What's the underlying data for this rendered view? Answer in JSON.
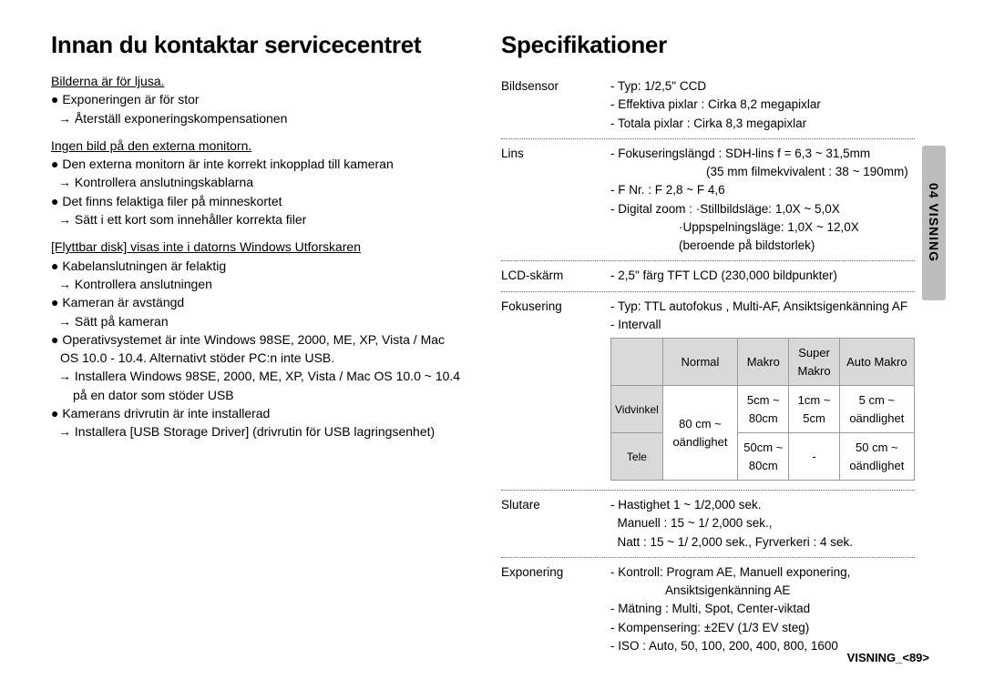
{
  "left": {
    "heading": "Innan du kontaktar servicecentret",
    "groups": [
      {
        "issue": "Bilderna är för ljusa.",
        "items": [
          {
            "bullet": "● Exponeringen är för stor",
            "arrow": "→ Återställ exponeringskompensationen"
          }
        ]
      },
      {
        "issue": "Ingen bild på den externa monitorn.",
        "items": [
          {
            "bullet": "● Den externa monitorn är inte korrekt inkopplad till kameran",
            "arrow": "→ Kontrollera anslutningskablarna"
          },
          {
            "bullet": "● Det finns felaktiga filer på minneskortet",
            "arrow": "→ Sätt i ett kort som innehåller korrekta filer"
          }
        ]
      },
      {
        "issue": "[Flyttbar disk] visas inte i datorns Windows Utforskaren",
        "items": [
          {
            "bullet": "● Kabelanslutningen är felaktig",
            "arrow": "→ Kontrollera anslutningen"
          },
          {
            "bullet": "● Kameran är avstängd",
            "arrow": "→ Sätt på kameran"
          },
          {
            "bullet": "● Operativsystemet är inte Windows 98SE, 2000, ME, XP, Vista / Mac OS 10.0 - 10.4. Alternativt stöder PC:n inte USB.",
            "arrow": "→ Installera Windows 98SE, 2000, ME, XP, Vista / Mac OS 10.0 ~ 10.4 på en dator som stöder USB"
          },
          {
            "bullet": "● Kamerans drivrutin är inte installerad",
            "arrow": "→ Installera [USB Storage Driver] (drivrutin för USB lagringsenhet)"
          }
        ]
      }
    ]
  },
  "right": {
    "heading": "Specifikationer",
    "specs": [
      {
        "label": "Bildsensor",
        "lines": [
          "- Typ: 1/2,5\" CCD",
          "- Effektiva pixlar : Cirka 8,2 megapixlar",
          "- Totala pixlar : Cirka 8,3 megapixlar"
        ]
      },
      {
        "label": "Lins",
        "lines": [
          "- Fokuseringslängd : SDH-lins f = 6,3 ~ 31,5mm",
          "                            (35 mm filmekvivalent : 38 ~ 190mm)",
          "- F Nr. : F 2,8 ~ F 4,6",
          "- Digital zoom : ·Stillbildsläge: 1,0X ~ 5,0X",
          "                    ·Uppspelningsläge: 1,0X ~ 12,0X",
          "                    (beroende på bildstorlek)"
        ]
      },
      {
        "label": "LCD-skärm",
        "lines": [
          "- 2,5\" färg TFT LCD (230,000 bildpunkter)"
        ]
      },
      {
        "label": "Fokusering",
        "lines": [
          "- Typ: TTL autofokus , Multi-AF, Ansiktsigenkänning AF",
          "- Intervall"
        ],
        "table": {
          "header": [
            "",
            "Normal",
            "Makro",
            "Super Makro",
            "Auto Makro"
          ],
          "rows": [
            [
              "Vidvinkel",
              "80 cm ~ oändlighet",
              "5cm ~ 80cm",
              "1cm ~ 5cm",
              "5 cm ~ oändlighet"
            ],
            [
              "Tele",
              "",
              "50cm ~ 80cm",
              "-",
              "50 cm ~ oändlighet"
            ]
          ],
          "rowspan": true
        }
      },
      {
        "label": "Slutare",
        "lines": [
          "- Hastighet 1 ~ 1/2,000 sek.",
          "  Manuell : 15 ~ 1/ 2,000 sek.,",
          "  Natt : 15 ~ 1/ 2,000 sek., Fyrverkeri : 4 sek."
        ]
      },
      {
        "label": "Exponering",
        "lines": [
          "- Kontroll: Program AE, Manuell exponering,",
          "                Ansiktsigenkänning AE",
          "- Mätning : Multi, Spot, Center-viktad",
          "- Kompensering: ±2EV (1/3 EV steg)",
          "- ISO : Auto, 50, 100, 200, 400, 800, 1600"
        ],
        "last": true
      }
    ]
  },
  "sideTab": "04 VISNING",
  "footer": "VISNING_<89>",
  "colors": {
    "tab": "#bcbcbc",
    "tableHeader": "#d9d9d9"
  }
}
